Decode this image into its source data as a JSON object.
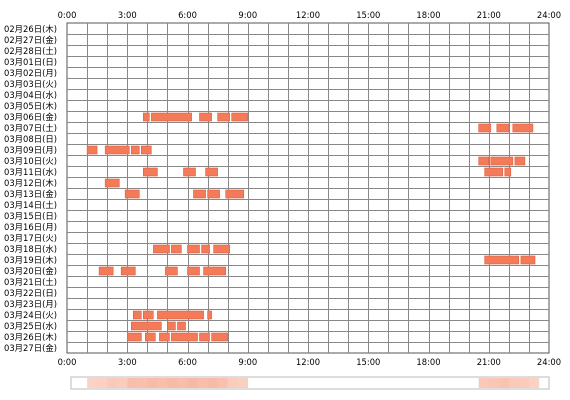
{
  "chart_data": {
    "type": "heatmap",
    "x_axis": {
      "unit": "hours",
      "min": 0,
      "max": 24,
      "ticks": [
        "0:00",
        "3:00",
        "6:00",
        "9:00",
        "12:00",
        "15:00",
        "18:00",
        "21:00",
        "24:00"
      ]
    },
    "rows": [
      "02月26日(木)",
      "02月27日(金)",
      "02月28日(土)",
      "03月01日(日)",
      "03月02日(月)",
      "03月03日(火)",
      "03月04日(水)",
      "03月05日(木)",
      "03月06日(金)",
      "03月07日(土)",
      "03月08日(日)",
      "03月09日(月)",
      "03月10日(火)",
      "03月11日(水)",
      "03月12日(木)",
      "03月13日(金)",
      "03月14日(土)",
      "03月15日(日)",
      "03月16日(月)",
      "03月17日(火)",
      "03月18日(水)",
      "03月19日(木)",
      "03月20日(金)",
      "03月21日(土)",
      "03月22日(日)",
      "03月23日(月)",
      "03月24日(火)",
      "03月25日(水)",
      "03月26日(木)",
      "03月27日(金)"
    ],
    "series": [
      {
        "row": 8,
        "start": 3.8,
        "end": 4.1
      },
      {
        "row": 8,
        "start": 4.2,
        "end": 6.2
      },
      {
        "row": 8,
        "start": 6.6,
        "end": 7.2
      },
      {
        "row": 8,
        "start": 7.5,
        "end": 8.1
      },
      {
        "row": 8,
        "start": 8.2,
        "end": 9.0
      },
      {
        "row": 9,
        "start": 20.5,
        "end": 21.1
      },
      {
        "row": 9,
        "start": 21.4,
        "end": 22.0
      },
      {
        "row": 9,
        "start": 22.2,
        "end": 23.2
      },
      {
        "row": 11,
        "start": 1.0,
        "end": 1.5
      },
      {
        "row": 11,
        "start": 1.9,
        "end": 3.1
      },
      {
        "row": 11,
        "start": 3.2,
        "end": 3.6
      },
      {
        "row": 11,
        "start": 3.7,
        "end": 4.2
      },
      {
        "row": 12,
        "start": 20.5,
        "end": 21.0
      },
      {
        "row": 12,
        "start": 21.1,
        "end": 22.2
      },
      {
        "row": 12,
        "start": 22.3,
        "end": 22.8
      },
      {
        "row": 13,
        "start": 3.8,
        "end": 4.5
      },
      {
        "row": 13,
        "start": 5.8,
        "end": 6.4
      },
      {
        "row": 13,
        "start": 6.9,
        "end": 7.5
      },
      {
        "row": 13,
        "start": 20.8,
        "end": 21.7
      },
      {
        "row": 13,
        "start": 21.8,
        "end": 22.1
      },
      {
        "row": 14,
        "start": 1.9,
        "end": 2.6
      },
      {
        "row": 15,
        "start": 2.9,
        "end": 3.6
      },
      {
        "row": 15,
        "start": 6.3,
        "end": 6.9
      },
      {
        "row": 15,
        "start": 7.0,
        "end": 7.6
      },
      {
        "row": 15,
        "start": 7.9,
        "end": 8.8
      },
      {
        "row": 20,
        "start": 4.3,
        "end": 5.1
      },
      {
        "row": 20,
        "start": 5.2,
        "end": 5.7
      },
      {
        "row": 20,
        "start": 6.0,
        "end": 6.6
      },
      {
        "row": 20,
        "start": 6.7,
        "end": 7.1
      },
      {
        "row": 20,
        "start": 7.3,
        "end": 8.1
      },
      {
        "row": 21,
        "start": 20.8,
        "end": 22.5
      },
      {
        "row": 21,
        "start": 22.6,
        "end": 23.3
      },
      {
        "row": 22,
        "start": 1.6,
        "end": 2.3
      },
      {
        "row": 22,
        "start": 2.7,
        "end": 3.4
      },
      {
        "row": 22,
        "start": 4.9,
        "end": 5.5
      },
      {
        "row": 22,
        "start": 6.0,
        "end": 6.6
      },
      {
        "row": 22,
        "start": 6.8,
        "end": 7.9
      },
      {
        "row": 26,
        "start": 3.3,
        "end": 3.7
      },
      {
        "row": 26,
        "start": 3.8,
        "end": 4.3
      },
      {
        "row": 26,
        "start": 4.5,
        "end": 6.8
      },
      {
        "row": 26,
        "start": 7.0,
        "end": 7.2
      },
      {
        "row": 27,
        "start": 3.2,
        "end": 4.7
      },
      {
        "row": 27,
        "start": 5.0,
        "end": 5.4
      },
      {
        "row": 27,
        "start": 5.5,
        "end": 5.9
      },
      {
        "row": 28,
        "start": 3.0,
        "end": 3.7
      },
      {
        "row": 28,
        "start": 3.9,
        "end": 4.4
      },
      {
        "row": 28,
        "start": 4.6,
        "end": 5.1
      },
      {
        "row": 28,
        "start": 5.2,
        "end": 6.5
      },
      {
        "row": 28,
        "start": 6.6,
        "end": 7.1
      },
      {
        "row": 28,
        "start": 7.2,
        "end": 8.0
      }
    ],
    "grid": true,
    "summary_band": true,
    "colors": {
      "bar_fill": "#f47b5a",
      "bar_edge": "#e0603c",
      "grid_line": "#888888",
      "grid_border": "#555555",
      "band_light": "#fde9e2",
      "band_dark": "#f8b8a4",
      "band_border": "#bbbbbb"
    }
  }
}
